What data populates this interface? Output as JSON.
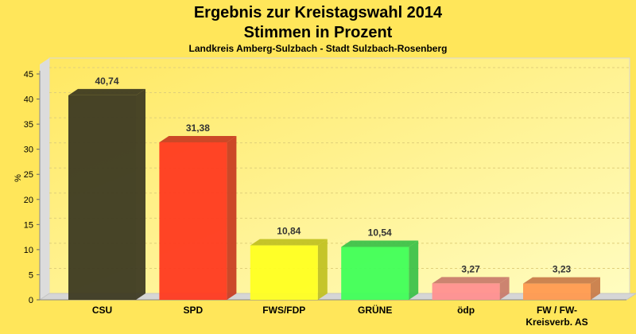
{
  "chart_data": {
    "type": "bar",
    "title": "Ergebnis zur Kreistagswahl 2014",
    "subtitle_main": "Stimmen in Prozent",
    "subtitle": "Landkreis Amberg-Sulzbach - Stadt Sulzbach-Rosenberg",
    "xlabel": "",
    "ylabel": "%",
    "ylim": [
      0,
      45
    ],
    "yticks": [
      0,
      5,
      10,
      15,
      20,
      25,
      30,
      35,
      40,
      45
    ],
    "grid": true,
    "categories": [
      [
        "CSU"
      ],
      [
        "SPD"
      ],
      [
        "FWS/FDP"
      ],
      [
        "GRÜNE"
      ],
      [
        "ödp"
      ],
      [
        "FW / FW-",
        "Kreisverb. AS"
      ]
    ],
    "values": [
      40.74,
      31.38,
      10.84,
      10.54,
      3.27,
      3.23
    ],
    "value_labels": [
      "40,74",
      "31,38",
      "10,84",
      "10,54",
      "3,27",
      "3,23"
    ],
    "colors": [
      "#3d3a22",
      "#ff3a20",
      "#ffff22",
      "#40ff58",
      "#ff9090",
      "#ff9a50"
    ],
    "side_colors": [
      "#3a3620",
      "#c83a20",
      "#c0c020",
      "#38c048",
      "#c87a6a",
      "#c87a48"
    ]
  }
}
